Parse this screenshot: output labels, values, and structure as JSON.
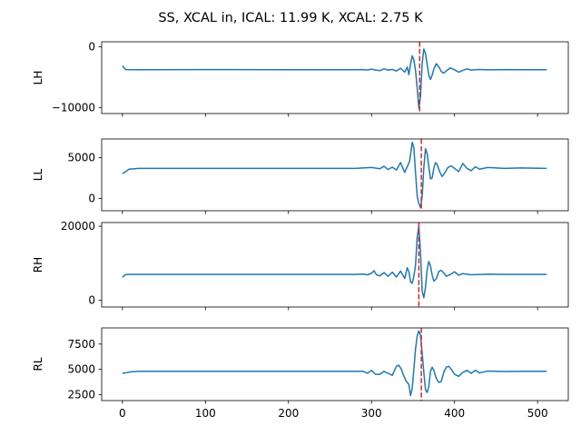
{
  "figure": {
    "title": "SS, XCAL in, ICAL: 11.99 K, XCAL: 2.75 K"
  },
  "chart_data": {
    "type": "line",
    "title": "SS, XCAL in, ICAL: 11.99 K, XCAL: 2.75 K",
    "shared_x": true,
    "xlim": [
      -25,
      537
    ],
    "x_ticks": [
      0,
      100,
      200,
      300,
      400,
      500
    ],
    "x_tick_labels": [
      "0",
      "100",
      "200",
      "300",
      "400",
      "500"
    ],
    "series_color": "#1f77b4",
    "marker_color": "#d62728",
    "grid": false,
    "subplots": [
      {
        "ylabel": "LH",
        "ylim": [
          -11000,
          800
        ],
        "y_ticks": [
          0,
          -10000
        ],
        "y_tick_labels": [
          "0",
          "−10000"
        ],
        "baseline": -3800,
        "start": -3150,
        "marker_x": 358,
        "points": [
          [
            0,
            -3150
          ],
          [
            2,
            -3500
          ],
          [
            4,
            -3780
          ],
          [
            20,
            -3790
          ],
          [
            100,
            -3770
          ],
          [
            200,
            -3790
          ],
          [
            280,
            -3800
          ],
          [
            290,
            -3780
          ],
          [
            295,
            -3850
          ],
          [
            300,
            -3700
          ],
          [
            305,
            -3850
          ],
          [
            310,
            -3950
          ],
          [
            315,
            -3650
          ],
          [
            320,
            -3850
          ],
          [
            325,
            -3750
          ],
          [
            330,
            -4000
          ],
          [
            335,
            -3550
          ],
          [
            340,
            -4200
          ],
          [
            343,
            -3350
          ],
          [
            345,
            -4600
          ],
          [
            347,
            -2900
          ],
          [
            349,
            -1500
          ],
          [
            351,
            -2200
          ],
          [
            353,
            -3900
          ],
          [
            355,
            -6800
          ],
          [
            357,
            -10100
          ],
          [
            359,
            -8200
          ],
          [
            361,
            -2800
          ],
          [
            363,
            -400
          ],
          [
            365,
            -1100
          ],
          [
            367,
            -2900
          ],
          [
            369,
            -4700
          ],
          [
            371,
            -5400
          ],
          [
            373,
            -4700
          ],
          [
            375,
            -3700
          ],
          [
            378,
            -2800
          ],
          [
            381,
            -3300
          ],
          [
            384,
            -4100
          ],
          [
            387,
            -4350
          ],
          [
            390,
            -4000
          ],
          [
            395,
            -3500
          ],
          [
            400,
            -3800
          ],
          [
            405,
            -4200
          ],
          [
            410,
            -3900
          ],
          [
            415,
            -3650
          ],
          [
            420,
            -3850
          ],
          [
            430,
            -3750
          ],
          [
            440,
            -3820
          ],
          [
            460,
            -3780
          ],
          [
            480,
            -3800
          ],
          [
            511,
            -3800
          ]
        ]
      },
      {
        "ylabel": "LL",
        "ylim": [
          -1500,
          7300
        ],
        "y_ticks": [
          0,
          5000
        ],
        "y_tick_labels": [
          "0",
          "5000"
        ],
        "marker_x": 360,
        "points": [
          [
            0,
            3050
          ],
          [
            3,
            3250
          ],
          [
            8,
            3600
          ],
          [
            20,
            3700
          ],
          [
            100,
            3700
          ],
          [
            200,
            3700
          ],
          [
            280,
            3700
          ],
          [
            300,
            3800
          ],
          [
            310,
            3650
          ],
          [
            315,
            3950
          ],
          [
            320,
            3550
          ],
          [
            325,
            3850
          ],
          [
            330,
            3500
          ],
          [
            335,
            4400
          ],
          [
            340,
            3200
          ],
          [
            343,
            3900
          ],
          [
            346,
            4600
          ],
          [
            349,
            6900
          ],
          [
            351,
            6200
          ],
          [
            353,
            3200
          ],
          [
            355,
            300
          ],
          [
            357,
            -600
          ],
          [
            359,
            -1100
          ],
          [
            361,
            200
          ],
          [
            363,
            3800
          ],
          [
            365,
            6100
          ],
          [
            367,
            5500
          ],
          [
            369,
            3900
          ],
          [
            371,
            2400
          ],
          [
            373,
            2500
          ],
          [
            375,
            3700
          ],
          [
            377,
            4400
          ],
          [
            379,
            4200
          ],
          [
            382,
            3300
          ],
          [
            385,
            2700
          ],
          [
            388,
            3100
          ],
          [
            392,
            3800
          ],
          [
            396,
            4000
          ],
          [
            400,
            3700
          ],
          [
            405,
            3300
          ],
          [
            410,
            4300
          ],
          [
            415,
            3700
          ],
          [
            420,
            3400
          ],
          [
            425,
            3900
          ],
          [
            430,
            3600
          ],
          [
            440,
            3800
          ],
          [
            460,
            3700
          ],
          [
            480,
            3750
          ],
          [
            511,
            3700
          ]
        ]
      },
      {
        "ylabel": "RH",
        "ylim": [
          -1800,
          21000
        ],
        "y_ticks": [
          0,
          20000
        ],
        "y_tick_labels": [
          "0",
          "20000"
        ],
        "marker_x": 357,
        "points": [
          [
            0,
            6200
          ],
          [
            2,
            6700
          ],
          [
            5,
            7000
          ],
          [
            20,
            7000
          ],
          [
            100,
            7000
          ],
          [
            200,
            7000
          ],
          [
            280,
            7000
          ],
          [
            290,
            7100
          ],
          [
            295,
            6900
          ],
          [
            300,
            7300
          ],
          [
            303,
            8000
          ],
          [
            306,
            6900
          ],
          [
            310,
            6600
          ],
          [
            315,
            7500
          ],
          [
            320,
            6500
          ],
          [
            325,
            7600
          ],
          [
            330,
            6300
          ],
          [
            335,
            7900
          ],
          [
            340,
            5900
          ],
          [
            343,
            8800
          ],
          [
            345,
            7800
          ],
          [
            347,
            5000
          ],
          [
            349,
            4600
          ],
          [
            351,
            6500
          ],
          [
            353,
            9500
          ],
          [
            355,
            17000
          ],
          [
            357,
            20000
          ],
          [
            359,
            13000
          ],
          [
            361,
            2500
          ],
          [
            363,
            700
          ],
          [
            365,
            3500
          ],
          [
            367,
            8300
          ],
          [
            369,
            10500
          ],
          [
            371,
            9300
          ],
          [
            373,
            6900
          ],
          [
            375,
            5200
          ],
          [
            378,
            5800
          ],
          [
            381,
            7800
          ],
          [
            384,
            8100
          ],
          [
            387,
            7400
          ],
          [
            390,
            6500
          ],
          [
            395,
            7000
          ],
          [
            400,
            7700
          ],
          [
            405,
            6800
          ],
          [
            410,
            7200
          ],
          [
            420,
            6900
          ],
          [
            440,
            7050
          ],
          [
            460,
            7000
          ],
          [
            480,
            7000
          ],
          [
            511,
            7000
          ]
        ]
      },
      {
        "ylabel": "RL",
        "ylim": [
          1900,
          9100
        ],
        "y_ticks": [
          2500,
          5000,
          7500
        ],
        "y_tick_labels": [
          "2500",
          "5000",
          "7500"
        ],
        "marker_x": 360,
        "points": [
          [
            0,
            4600
          ],
          [
            4,
            4650
          ],
          [
            10,
            4750
          ],
          [
            20,
            4800
          ],
          [
            100,
            4800
          ],
          [
            200,
            4800
          ],
          [
            280,
            4800
          ],
          [
            290,
            4800
          ],
          [
            295,
            4600
          ],
          [
            300,
            4900
          ],
          [
            305,
            4500
          ],
          [
            310,
            4500
          ],
          [
            315,
            4800
          ],
          [
            320,
            4600
          ],
          [
            325,
            4400
          ],
          [
            330,
            5300
          ],
          [
            333,
            5400
          ],
          [
            336,
            5000
          ],
          [
            339,
            4300
          ],
          [
            342,
            3800
          ],
          [
            345,
            3500
          ],
          [
            347,
            2400
          ],
          [
            349,
            3100
          ],
          [
            351,
            5000
          ],
          [
            353,
            7000
          ],
          [
            355,
            8300
          ],
          [
            357,
            8800
          ],
          [
            359,
            8400
          ],
          [
            361,
            6600
          ],
          [
            363,
            4700
          ],
          [
            365,
            3000
          ],
          [
            367,
            2700
          ],
          [
            369,
            3300
          ],
          [
            371,
            4800
          ],
          [
            373,
            5200
          ],
          [
            375,
            4900
          ],
          [
            378,
            4100
          ],
          [
            381,
            3700
          ],
          [
            384,
            3800
          ],
          [
            387,
            4700
          ],
          [
            390,
            5200
          ],
          [
            393,
            5300
          ],
          [
            396,
            5000
          ],
          [
            400,
            4500
          ],
          [
            405,
            4300
          ],
          [
            410,
            4700
          ],
          [
            415,
            4900
          ],
          [
            420,
            4600
          ],
          [
            425,
            4900
          ],
          [
            430,
            4650
          ],
          [
            440,
            4820
          ],
          [
            460,
            4780
          ],
          [
            480,
            4800
          ],
          [
            511,
            4800
          ]
        ]
      }
    ]
  }
}
